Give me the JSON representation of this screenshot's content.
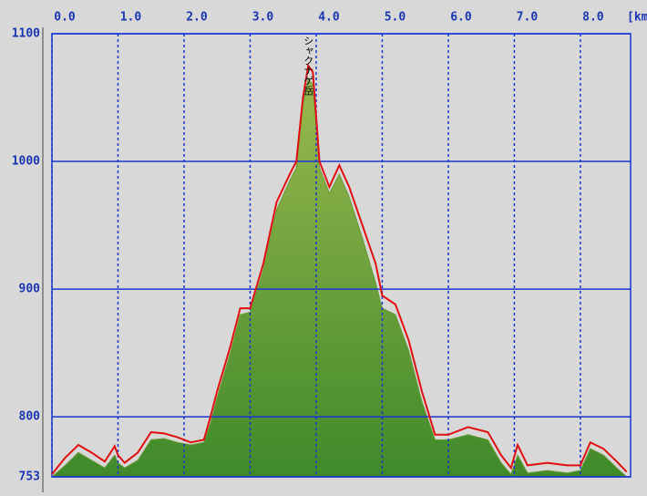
{
  "chart_data": {
    "type": "area-line",
    "x_label": "[km",
    "annotation": "シャクナゲ岳",
    "x": [
      0.0,
      0.2,
      0.4,
      0.6,
      0.8,
      0.95,
      1.0,
      1.1,
      1.3,
      1.5,
      1.7,
      1.9,
      2.1,
      2.3,
      2.4,
      2.5,
      2.7,
      2.85,
      3.0,
      3.2,
      3.4,
      3.6,
      3.7,
      3.8,
      3.88,
      3.95,
      4.05,
      4.2,
      4.35,
      4.5,
      4.7,
      4.9,
      5.0,
      5.2,
      5.4,
      5.6,
      5.8,
      6.0,
      6.3,
      6.6,
      6.8,
      6.95,
      7.05,
      7.2,
      7.5,
      7.8,
      8.0,
      8.15,
      8.35,
      8.55,
      8.7
    ],
    "series": [
      {
        "name": "elevation",
        "color": "#e01010",
        "values": [
          755,
          768,
          778,
          772,
          765,
          777,
          770,
          764,
          772,
          788,
          787,
          784,
          780,
          782,
          800,
          820,
          855,
          885,
          885,
          920,
          968,
          990,
          1000,
          1050,
          1075,
          1070,
          1000,
          980,
          997,
          980,
          950,
          920,
          895,
          888,
          860,
          820,
          786,
          786,
          792,
          788,
          770,
          760,
          778,
          762,
          764,
          762,
          762,
          780,
          775,
          765,
          757
        ]
      },
      {
        "name": "terrain",
        "color": "#6a9a3a",
        "values": [
          753,
          762,
          772,
          766,
          760,
          770,
          764,
          760,
          766,
          782,
          783,
          780,
          778,
          780,
          795,
          815,
          850,
          880,
          882,
          915,
          962,
          985,
          995,
          1045,
          1065,
          1060,
          995,
          975,
          990,
          972,
          940,
          905,
          885,
          880,
          852,
          812,
          782,
          782,
          786,
          782,
          764,
          755,
          770,
          756,
          758,
          756,
          758,
          775,
          770,
          760,
          753
        ]
      }
    ],
    "xlim": [
      0,
      8.76
    ],
    "ylim": [
      753,
      1100
    ],
    "xticks": [
      {
        "value": 0,
        "label": "0.0"
      },
      {
        "value": 1,
        "label": "1.0"
      },
      {
        "value": 2,
        "label": "2.0"
      },
      {
        "value": 3,
        "label": "3.0"
      },
      {
        "value": 4,
        "label": "4.0"
      },
      {
        "value": 5,
        "label": "5.0"
      },
      {
        "value": 6,
        "label": "6.0"
      },
      {
        "value": 7,
        "label": "7.0"
      },
      {
        "value": 8,
        "label": "8.0"
      }
    ],
    "yticks": [
      753,
      800,
      900,
      1000,
      1100
    ],
    "grid": true
  }
}
